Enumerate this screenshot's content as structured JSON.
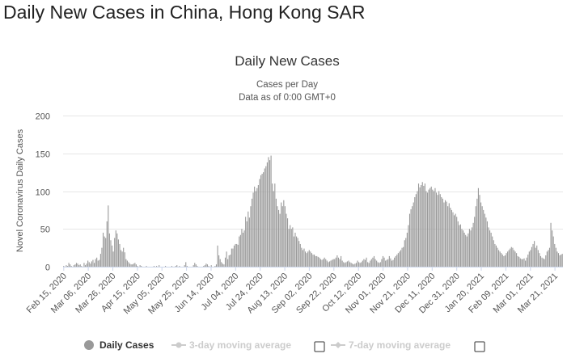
{
  "page": {
    "title": "Daily New Cases in China, Hong Kong SAR"
  },
  "chart_data": {
    "type": "bar",
    "title": "Daily New Cases",
    "subtitle_line1": "Cases per Day",
    "subtitle_line2": "Data as of 0:00 GMT+0",
    "ylabel": "Novel Coronavirus Daily Cases",
    "xlabel": "",
    "ylim": [
      0,
      200
    ],
    "yticks": [
      0,
      50,
      100,
      150,
      200
    ],
    "x_start": "2020-02-15",
    "x_end": "2021-03-27",
    "xticks": [
      "Feb 15, 2020",
      "Mar 06, 2020",
      "Mar 26, 2020",
      "Apr 15, 2020",
      "May 05, 2020",
      "May 25, 2020",
      "Jun 14, 2020",
      "Jul 04, 2020",
      "Jul 24, 2020",
      "Aug 13, 2020",
      "Sep 02, 2020",
      "Sep 22, 2020",
      "Oct 12, 2020",
      "Nov 01, 2020",
      "Nov 21, 2020",
      "Dec 11, 2020",
      "Dec 31, 2020",
      "Jan 20, 2021",
      "Feb 09, 2021",
      "Mar 01, 2021",
      "Mar 21, 2021"
    ],
    "series": [
      {
        "name": "Daily Cases",
        "color": "#999999",
        "values": [
          1,
          0,
          2,
          1,
          5,
          3,
          1,
          0,
          2,
          3,
          5,
          4,
          2,
          3,
          1,
          0,
          5,
          2,
          4,
          8,
          6,
          4,
          7,
          9,
          5,
          10,
          12,
          8,
          9,
          17,
          25,
          45,
          40,
          38,
          60,
          81,
          44,
          35,
          28,
          20,
          38,
          48,
          44,
          36,
          30,
          22,
          20,
          25,
          19,
          10,
          8,
          6,
          4,
          3,
          3,
          4,
          5,
          3,
          1,
          0,
          2,
          1,
          0,
          0,
          0,
          1,
          0,
          0,
          0,
          0,
          0,
          1,
          0,
          1,
          0,
          2,
          0,
          0,
          0,
          0,
          1,
          0,
          0,
          0,
          0,
          1,
          0,
          0,
          1,
          2,
          0,
          1,
          0,
          0,
          0,
          2,
          6,
          1,
          0,
          0,
          0,
          0,
          2,
          5,
          3,
          1,
          0,
          0,
          0,
          0,
          1,
          2,
          4,
          3,
          1,
          0,
          2,
          0,
          0,
          1,
          3,
          28,
          15,
          10,
          6,
          4,
          3,
          12,
          20,
          10,
          15,
          16,
          24,
          24,
          28,
          30,
          30,
          29,
          40,
          42,
          50,
          45,
          48,
          66,
          60,
          73,
          65,
          80,
          90,
          98,
          106,
          100,
          104,
          108,
          116,
          121,
          123,
          125,
          130,
          133,
          138,
          145,
          141,
          147,
          110,
          100,
          110,
          90,
          80,
          75,
          70,
          85,
          80,
          88,
          80,
          70,
          64,
          50,
          55,
          50,
          52,
          40,
          45,
          40,
          38,
          34,
          30,
          25,
          22,
          24,
          20,
          18,
          20,
          22,
          20,
          18,
          16,
          16,
          14,
          14,
          13,
          12,
          10,
          9,
          10,
          12,
          10,
          8,
          6,
          7,
          8,
          9,
          10,
          10,
          12,
          15,
          12,
          10,
          14,
          8,
          6,
          5,
          6,
          7,
          8,
          6,
          5,
          4,
          3,
          4,
          5,
          8,
          6,
          5,
          6,
          8,
          10,
          9,
          12,
          6,
          5,
          8,
          10,
          12,
          14,
          10,
          8,
          6,
          5,
          6,
          10,
          14,
          12,
          8,
          9,
          10,
          14,
          11,
          8,
          9,
          12,
          14,
          16,
          18,
          20,
          22,
          25,
          26,
          35,
          38,
          45,
          55,
          70,
          76,
          80,
          85,
          92,
          96,
          100,
          110,
          105,
          108,
          112,
          107,
          110,
          100,
          98,
          102,
          104,
          106,
          102,
          100,
          104,
          98,
          95,
          100,
          96,
          92,
          90,
          85,
          88,
          86,
          80,
          84,
          78,
          75,
          72,
          68,
          70,
          66,
          60,
          55,
          56,
          50,
          48,
          45,
          42,
          40,
          44,
          50,
          48,
          52,
          58,
          66,
          80,
          90,
          104,
          95,
          85,
          80,
          75,
          70,
          65,
          60,
          52,
          48,
          45,
          40,
          35,
          30,
          28,
          25,
          22,
          20,
          18,
          16,
          14,
          15,
          18,
          20,
          22,
          24,
          26,
          25,
          22,
          20,
          18,
          14,
          13,
          11,
          10,
          10,
          11,
          8,
          12,
          16,
          20,
          22,
          26,
          30,
          34,
          25,
          28,
          22,
          18,
          14,
          12,
          11,
          10,
          15,
          20,
          22,
          25,
          58,
          48,
          40,
          30,
          25,
          20,
          18,
          15,
          16,
          17
        ]
      }
    ],
    "legend": {
      "daily": "Daily Cases",
      "ma3": "3-day moving average",
      "ma7": "7-day moving average",
      "color_daily": "#999999",
      "color_ma": "#cccccc"
    },
    "grid": true
  }
}
